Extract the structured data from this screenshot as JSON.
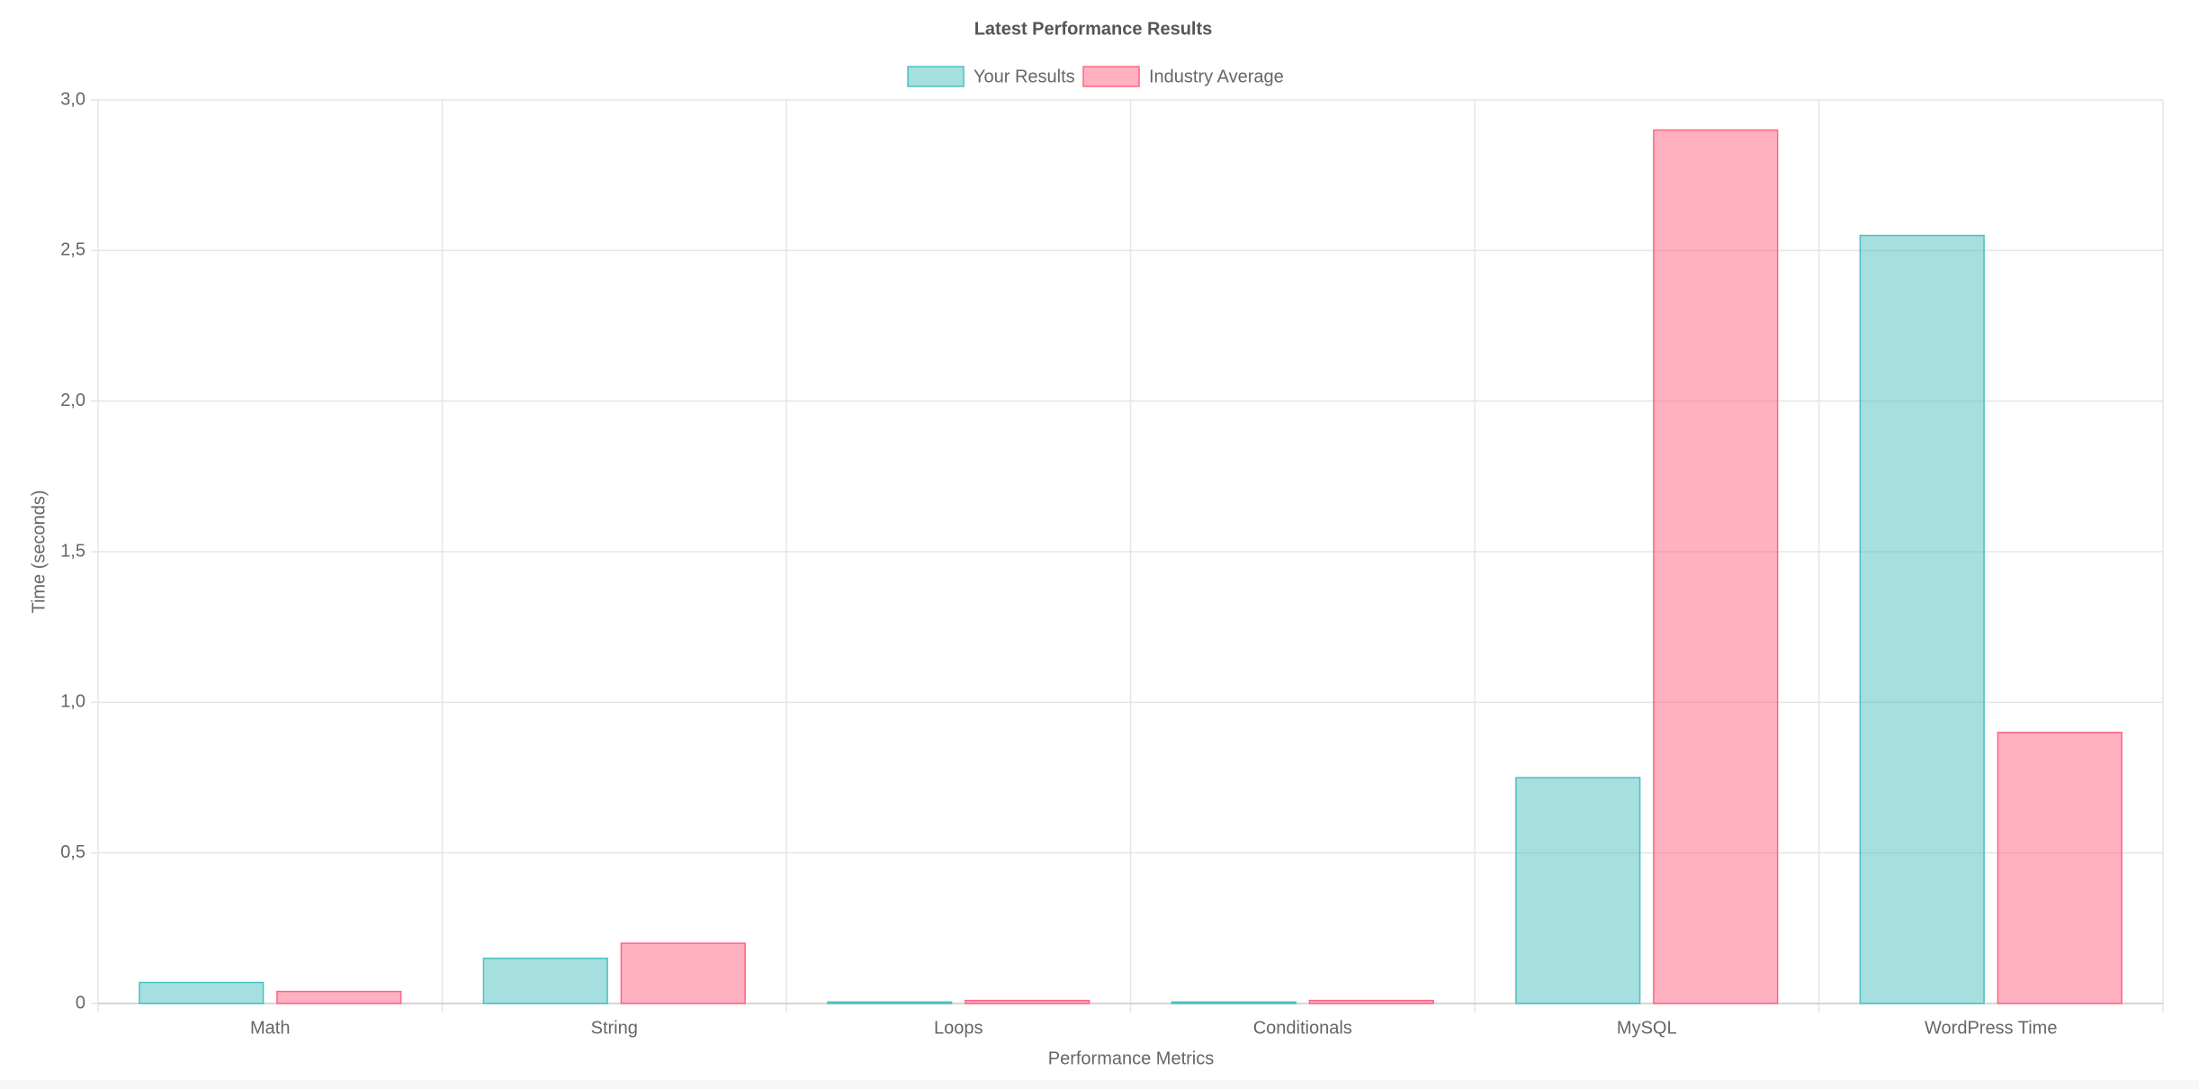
{
  "chart_data": {
    "type": "bar",
    "title": "Latest Performance Results",
    "x_label": "Performance Metrics",
    "y_label": "Time (seconds)",
    "categories": [
      "Math",
      "String",
      "Loops",
      "Conditionals",
      "MySQL",
      "WordPress Time"
    ],
    "series": [
      {
        "name": "Your Results",
        "color": "#4bc0c0",
        "values": [
          0.07,
          0.15,
          0.005,
          0.005,
          0.75,
          2.55
        ]
      },
      {
        "name": "Industry Average",
        "color": "#ff6384",
        "values": [
          0.04,
          0.2,
          0.01,
          0.01,
          2.9,
          0.9
        ]
      }
    ],
    "ylim": [
      0,
      3
    ],
    "yticks": [
      0,
      {
        "value": 0.5,
        "label": "0,5"
      },
      {
        "value": 1,
        "label": "1,0"
      },
      {
        "value": 1.5,
        "label": "1,5"
      },
      {
        "value": 2,
        "label": "2,0"
      },
      {
        "value": 2.5,
        "label": "2,5"
      },
      {
        "value": 3,
        "label": "3,0"
      }
    ],
    "grid": true,
    "legend": "top"
  }
}
